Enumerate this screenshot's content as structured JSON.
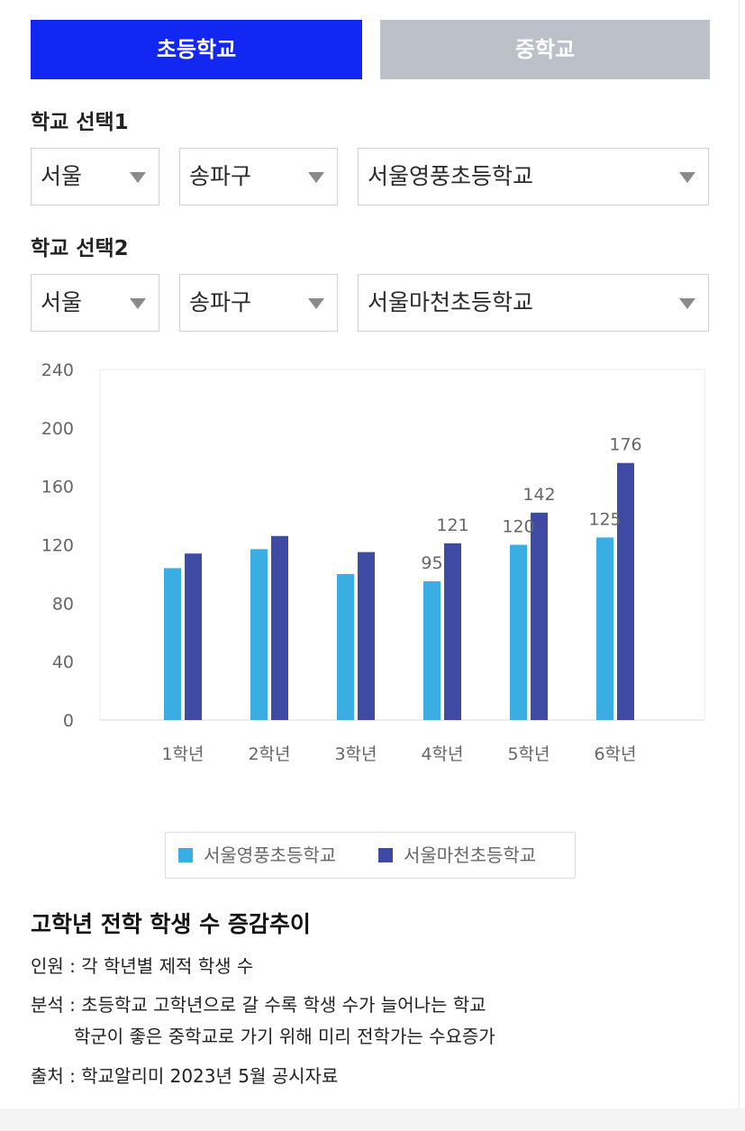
{
  "tabs": [
    {
      "label": "초등학교",
      "active": true
    },
    {
      "label": "중학교",
      "active": false
    }
  ],
  "school1": {
    "label": "학교 선택1",
    "region": "서울",
    "district": "송파구",
    "school": "서울영풍초등학교"
  },
  "school2": {
    "label": "학교 선택2",
    "region": "서울",
    "district": "송파구",
    "school": "서울마천초등학교"
  },
  "colors": {
    "tab_active": "#1327f2",
    "tab_inactive": "#bcc0c9",
    "series1": "#3aaee2",
    "series2": "#3e4aa3"
  },
  "chart_data": {
    "type": "bar",
    "categories": [
      "1학년",
      "2학년",
      "3학년",
      "4학년",
      "5학년",
      "6학년"
    ],
    "series": [
      {
        "name": "서울영풍초등학교",
        "values": [
          104,
          117,
          100,
          95,
          120,
          125
        ],
        "labels": [
          "",
          "",
          "",
          "95",
          "120",
          "125"
        ]
      },
      {
        "name": "서울마천초등학교",
        "values": [
          114,
          126,
          115,
          121,
          142,
          176
        ],
        "labels": [
          "",
          "",
          "",
          "121",
          "142",
          "176"
        ]
      }
    ],
    "yticks": [
      "0",
      "40",
      "80",
      "120",
      "160",
      "200",
      "240"
    ],
    "ylim": [
      0,
      240
    ],
    "grid": false,
    "legend": "bottom"
  },
  "description": {
    "title": "고학년 전학 학생 수 증감추이",
    "lines": [
      "인원 : 각 학년별 제적 학생 수",
      "분석 : 초등학교 고학년으로 갈 수록 학생 수가 늘어나는 학교",
      "학군이 좋은 중학교로 가기 위해 미리 전학가는 수요증가",
      "출처 : 학교알리미 2023년 5월 공시자료"
    ]
  }
}
